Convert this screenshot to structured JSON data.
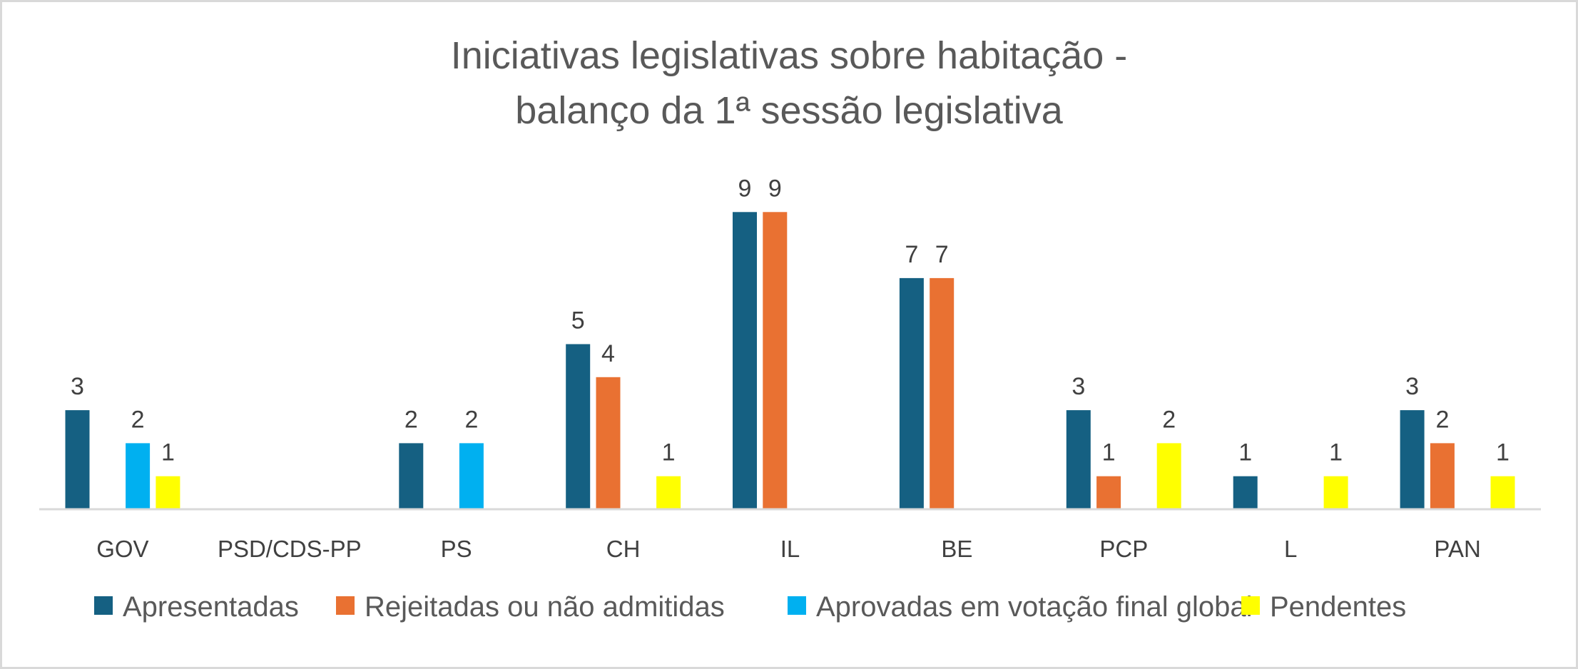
{
  "chart_data": {
    "type": "bar",
    "title_lines": [
      "Iniciativas legislativas sobre habitação -",
      "balanço da 1ª sessão legislativa"
    ],
    "xlabel": "",
    "ylabel": "",
    "ylim": [
      0,
      9
    ],
    "grid": false,
    "legend_position": "bottom",
    "categories": [
      "GOV",
      "PSD/CDS-PP",
      "PS",
      "CH",
      "IL",
      "BE",
      "PCP",
      "L",
      "PAN"
    ],
    "series": [
      {
        "name": "Apresentadas",
        "color": "#156082",
        "values": [
          3,
          0,
          2,
          5,
          9,
          7,
          3,
          1,
          3
        ]
      },
      {
        "name": "Rejeitadas ou não admitidas",
        "color": "#E97132",
        "values": [
          0,
          0,
          0,
          4,
          9,
          7,
          1,
          0,
          2
        ]
      },
      {
        "name": "Aprovadas em votação final global",
        "color": "#00B0F0",
        "values": [
          2,
          0,
          2,
          0,
          0,
          0,
          0,
          0,
          0
        ]
      },
      {
        "name": "Pendentes",
        "color": "#FFFF00",
        "values": [
          1,
          0,
          0,
          1,
          0,
          0,
          2,
          1,
          1
        ]
      }
    ]
  }
}
